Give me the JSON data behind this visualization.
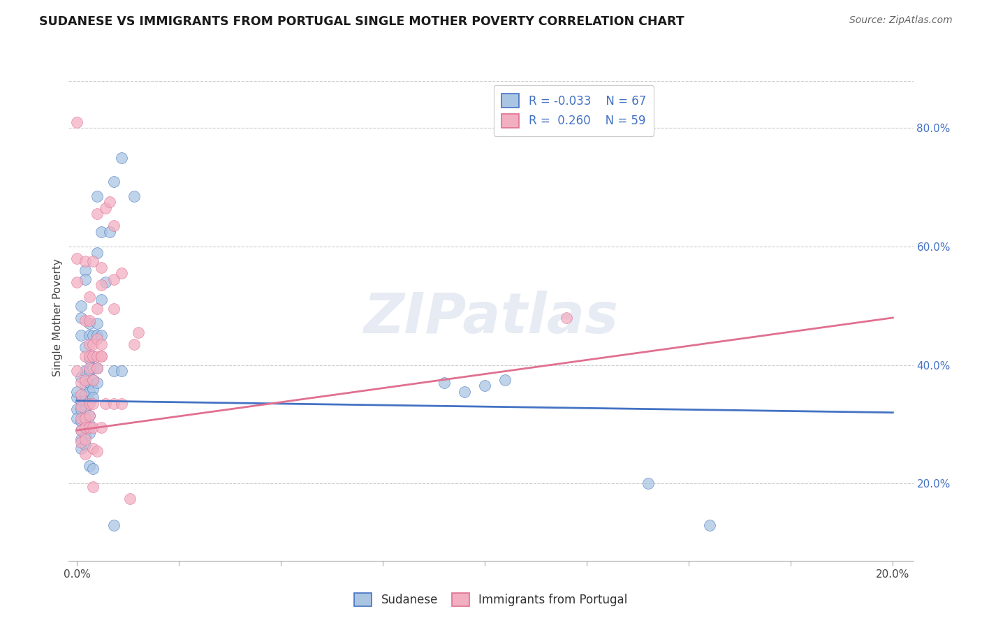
{
  "title": "SUDANESE VS IMMIGRANTS FROM PORTUGAL SINGLE MOTHER POVERTY CORRELATION CHART",
  "source": "Source: ZipAtlas.com",
  "ylabel": "Single Mother Poverty",
  "y_ticks": [
    0.2,
    0.4,
    0.6,
    0.8
  ],
  "y_tick_labels": [
    "20.0%",
    "40.0%",
    "60.0%",
    "80.0%"
  ],
  "x_ticks": [
    0.0,
    0.025,
    0.05,
    0.075,
    0.1,
    0.125,
    0.15,
    0.175,
    0.2
  ],
  "xmin": -0.002,
  "xmax": 0.205,
  "ymin": 0.07,
  "ymax": 0.89,
  "legend_r1": "R = -0.033",
  "legend_n1": "N = 67",
  "legend_r2": "R =  0.260",
  "legend_n2": "N = 59",
  "color_blue": "#aac5e2",
  "color_pink": "#f2afc2",
  "line_color_blue": "#4472c4",
  "line_color_pink": "#e07090",
  "label1": "Sudanese",
  "label2": "Immigrants from Portugal",
  "watermark": "ZIPatlas",
  "bg_color": "#ffffff",
  "blue_scatter": [
    [
      0.0,
      0.345
    ],
    [
      0.0,
      0.355
    ],
    [
      0.0,
      0.325
    ],
    [
      0.0,
      0.31
    ],
    [
      0.001,
      0.38
    ],
    [
      0.001,
      0.34
    ],
    [
      0.001,
      0.325
    ],
    [
      0.001,
      0.305
    ],
    [
      0.001,
      0.29
    ],
    [
      0.001,
      0.275
    ],
    [
      0.001,
      0.26
    ],
    [
      0.001,
      0.45
    ],
    [
      0.001,
      0.5
    ],
    [
      0.001,
      0.48
    ],
    [
      0.002,
      0.43
    ],
    [
      0.002,
      0.39
    ],
    [
      0.002,
      0.365
    ],
    [
      0.002,
      0.35
    ],
    [
      0.002,
      0.34
    ],
    [
      0.002,
      0.325
    ],
    [
      0.002,
      0.31
    ],
    [
      0.002,
      0.295
    ],
    [
      0.002,
      0.28
    ],
    [
      0.002,
      0.265
    ],
    [
      0.002,
      0.56
    ],
    [
      0.002,
      0.545
    ],
    [
      0.003,
      0.47
    ],
    [
      0.003,
      0.45
    ],
    [
      0.003,
      0.41
    ],
    [
      0.003,
      0.39
    ],
    [
      0.003,
      0.37
    ],
    [
      0.003,
      0.355
    ],
    [
      0.003,
      0.34
    ],
    [
      0.003,
      0.315
    ],
    [
      0.003,
      0.3
    ],
    [
      0.003,
      0.285
    ],
    [
      0.003,
      0.23
    ],
    [
      0.004,
      0.45
    ],
    [
      0.004,
      0.415
    ],
    [
      0.004,
      0.395
    ],
    [
      0.004,
      0.375
    ],
    [
      0.004,
      0.36
    ],
    [
      0.004,
      0.345
    ],
    [
      0.004,
      0.225
    ],
    [
      0.005,
      0.685
    ],
    [
      0.005,
      0.59
    ],
    [
      0.005,
      0.47
    ],
    [
      0.005,
      0.45
    ],
    [
      0.005,
      0.395
    ],
    [
      0.005,
      0.37
    ],
    [
      0.006,
      0.625
    ],
    [
      0.006,
      0.51
    ],
    [
      0.006,
      0.45
    ],
    [
      0.007,
      0.54
    ],
    [
      0.008,
      0.625
    ],
    [
      0.009,
      0.71
    ],
    [
      0.009,
      0.39
    ],
    [
      0.009,
      0.13
    ],
    [
      0.011,
      0.75
    ],
    [
      0.011,
      0.39
    ],
    [
      0.014,
      0.685
    ],
    [
      0.09,
      0.37
    ],
    [
      0.095,
      0.355
    ],
    [
      0.1,
      0.365
    ],
    [
      0.105,
      0.375
    ],
    [
      0.14,
      0.2
    ],
    [
      0.155,
      0.13
    ]
  ],
  "pink_scatter": [
    [
      0.0,
      0.81
    ],
    [
      0.0,
      0.58
    ],
    [
      0.0,
      0.54
    ],
    [
      0.0,
      0.39
    ],
    [
      0.001,
      0.37
    ],
    [
      0.001,
      0.35
    ],
    [
      0.001,
      0.33
    ],
    [
      0.001,
      0.31
    ],
    [
      0.001,
      0.29
    ],
    [
      0.001,
      0.27
    ],
    [
      0.002,
      0.575
    ],
    [
      0.002,
      0.475
    ],
    [
      0.002,
      0.415
    ],
    [
      0.002,
      0.375
    ],
    [
      0.002,
      0.31
    ],
    [
      0.002,
      0.295
    ],
    [
      0.002,
      0.275
    ],
    [
      0.002,
      0.25
    ],
    [
      0.003,
      0.515
    ],
    [
      0.003,
      0.475
    ],
    [
      0.003,
      0.435
    ],
    [
      0.003,
      0.415
    ],
    [
      0.003,
      0.395
    ],
    [
      0.003,
      0.335
    ],
    [
      0.003,
      0.315
    ],
    [
      0.003,
      0.295
    ],
    [
      0.004,
      0.575
    ],
    [
      0.004,
      0.435
    ],
    [
      0.004,
      0.415
    ],
    [
      0.004,
      0.375
    ],
    [
      0.004,
      0.335
    ],
    [
      0.004,
      0.295
    ],
    [
      0.004,
      0.26
    ],
    [
      0.004,
      0.195
    ],
    [
      0.005,
      0.655
    ],
    [
      0.005,
      0.495
    ],
    [
      0.005,
      0.445
    ],
    [
      0.005,
      0.415
    ],
    [
      0.005,
      0.395
    ],
    [
      0.005,
      0.255
    ],
    [
      0.006,
      0.535
    ],
    [
      0.006,
      0.415
    ],
    [
      0.006,
      0.295
    ],
    [
      0.006,
      0.565
    ],
    [
      0.006,
      0.435
    ],
    [
      0.006,
      0.415
    ],
    [
      0.007,
      0.665
    ],
    [
      0.007,
      0.335
    ],
    [
      0.008,
      0.675
    ],
    [
      0.009,
      0.635
    ],
    [
      0.009,
      0.545
    ],
    [
      0.009,
      0.495
    ],
    [
      0.009,
      0.335
    ],
    [
      0.011,
      0.555
    ],
    [
      0.011,
      0.335
    ],
    [
      0.013,
      0.175
    ],
    [
      0.014,
      0.435
    ],
    [
      0.015,
      0.455
    ],
    [
      0.12,
      0.48
    ]
  ],
  "blue_trendline_x": [
    0.0,
    0.2
  ],
  "blue_trendline_y": [
    0.34,
    0.32
  ],
  "pink_trendline_x": [
    0.0,
    0.2
  ],
  "pink_trendline_y": [
    0.29,
    0.48
  ]
}
